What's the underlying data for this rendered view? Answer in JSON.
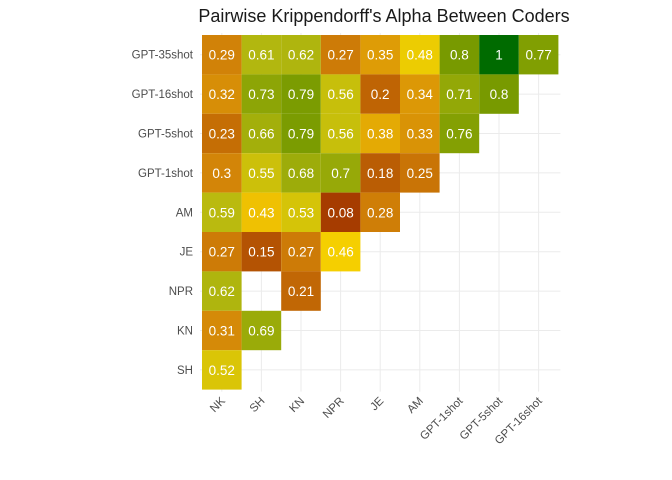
{
  "chart_data": {
    "type": "heatmap",
    "title": "Pairwise Krippendorff's Alpha Between Coders",
    "x_categories": [
      "NK",
      "SH",
      "KN",
      "NPR",
      "JE",
      "AM",
      "GPT-1shot",
      "GPT-5shot",
      "GPT-16shot"
    ],
    "y_categories_top_to_bottom": [
      "GPT-35shot",
      "GPT-16shot",
      "GPT-5shot",
      "GPT-1shot",
      "AM",
      "JE",
      "NPR",
      "KN",
      "SH"
    ],
    "grid": true,
    "legend": "none",
    "color_scale": {
      "domain": [
        0.08,
        0.3,
        0.46,
        0.6,
        0.8,
        1.0
      ],
      "colors": [
        "#A63C00",
        "#D38508",
        "#F5CF00",
        "#B5B810",
        "#789A00",
        "#006B00"
      ]
    },
    "cells": [
      {
        "y": "GPT-35shot",
        "x": "NK",
        "value": 0.29
      },
      {
        "y": "GPT-35shot",
        "x": "SH",
        "value": 0.61
      },
      {
        "y": "GPT-35shot",
        "x": "KN",
        "value": 0.62
      },
      {
        "y": "GPT-35shot",
        "x": "NPR",
        "value": 0.27
      },
      {
        "y": "GPT-35shot",
        "x": "JE",
        "value": 0.35
      },
      {
        "y": "GPT-35shot",
        "x": "AM",
        "value": 0.48
      },
      {
        "y": "GPT-35shot",
        "x": "GPT-1shot",
        "value": 0.8
      },
      {
        "y": "GPT-35shot",
        "x": "GPT-5shot",
        "value": 1
      },
      {
        "y": "GPT-35shot",
        "x": "GPT-16shot",
        "value": 0.77
      },
      {
        "y": "GPT-16shot",
        "x": "NK",
        "value": 0.32
      },
      {
        "y": "GPT-16shot",
        "x": "SH",
        "value": 0.73
      },
      {
        "y": "GPT-16shot",
        "x": "KN",
        "value": 0.79
      },
      {
        "y": "GPT-16shot",
        "x": "NPR",
        "value": 0.56
      },
      {
        "y": "GPT-16shot",
        "x": "JE",
        "value": 0.2
      },
      {
        "y": "GPT-16shot",
        "x": "AM",
        "value": 0.34
      },
      {
        "y": "GPT-16shot",
        "x": "GPT-1shot",
        "value": 0.71
      },
      {
        "y": "GPT-16shot",
        "x": "GPT-5shot",
        "value": 0.8
      },
      {
        "y": "GPT-5shot",
        "x": "NK",
        "value": 0.23
      },
      {
        "y": "GPT-5shot",
        "x": "SH",
        "value": 0.66
      },
      {
        "y": "GPT-5shot",
        "x": "KN",
        "value": 0.79
      },
      {
        "y": "GPT-5shot",
        "x": "NPR",
        "value": 0.56
      },
      {
        "y": "GPT-5shot",
        "x": "JE",
        "value": 0.38
      },
      {
        "y": "GPT-5shot",
        "x": "AM",
        "value": 0.33
      },
      {
        "y": "GPT-5shot",
        "x": "GPT-1shot",
        "value": 0.76
      },
      {
        "y": "GPT-1shot",
        "x": "NK",
        "value": 0.3
      },
      {
        "y": "GPT-1shot",
        "x": "SH",
        "value": 0.55
      },
      {
        "y": "GPT-1shot",
        "x": "KN",
        "value": 0.68
      },
      {
        "y": "GPT-1shot",
        "x": "NPR",
        "value": 0.7
      },
      {
        "y": "GPT-1shot",
        "x": "JE",
        "value": 0.18
      },
      {
        "y": "GPT-1shot",
        "x": "AM",
        "value": 0.25
      },
      {
        "y": "AM",
        "x": "NK",
        "value": 0.59
      },
      {
        "y": "AM",
        "x": "SH",
        "value": 0.43
      },
      {
        "y": "AM",
        "x": "KN",
        "value": 0.53
      },
      {
        "y": "AM",
        "x": "NPR",
        "value": 0.08
      },
      {
        "y": "AM",
        "x": "JE",
        "value": 0.28
      },
      {
        "y": "JE",
        "x": "NK",
        "value": 0.27
      },
      {
        "y": "JE",
        "x": "SH",
        "value": 0.15
      },
      {
        "y": "JE",
        "x": "KN",
        "value": 0.27
      },
      {
        "y": "JE",
        "x": "NPR",
        "value": 0.46
      },
      {
        "y": "NPR",
        "x": "NK",
        "value": 0.62
      },
      {
        "y": "NPR",
        "x": "KN",
        "value": 0.21
      },
      {
        "y": "KN",
        "x": "NK",
        "value": 0.31
      },
      {
        "y": "KN",
        "x": "SH",
        "value": 0.69
      },
      {
        "y": "SH",
        "x": "NK",
        "value": 0.52
      }
    ]
  }
}
